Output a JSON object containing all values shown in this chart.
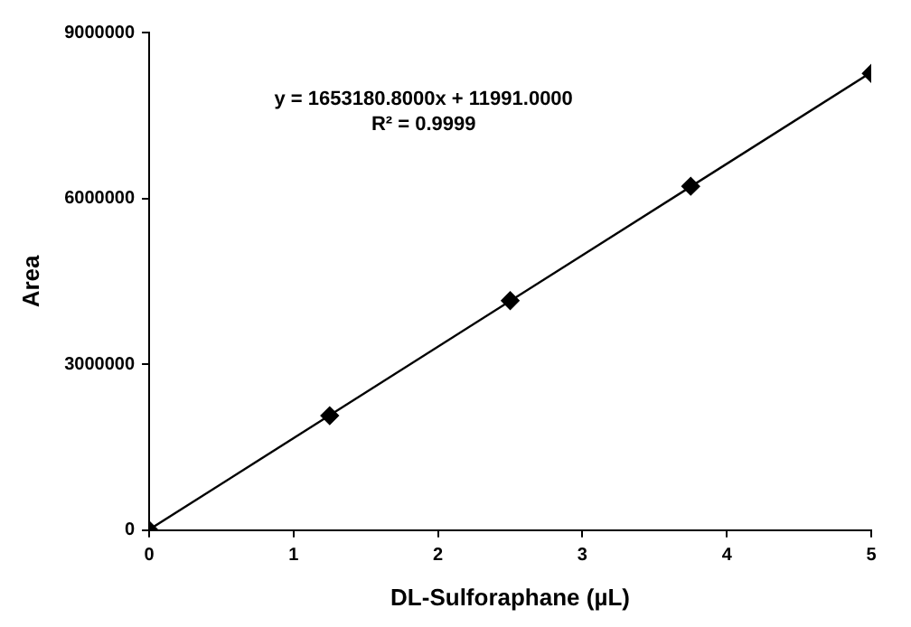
{
  "chart_data": {
    "type": "scatter",
    "xlabel": "DL-Sulforaphane (µL)",
    "ylabel": "Area",
    "xlim": [
      0,
      5
    ],
    "xticks": [
      0,
      1,
      2,
      3,
      4,
      5
    ],
    "ylim": [
      0,
      9000000
    ],
    "yticks": [
      0,
      3000000,
      6000000,
      9000000
    ],
    "grid": false,
    "legend": false,
    "marker": "diamond",
    "series": [
      {
        "color": "#000000",
        "x": [
          0,
          1.25,
          2.5,
          3.75,
          5
        ],
        "values": [
          0,
          2070000,
          4150000,
          6220000,
          8260000
        ]
      },
      {
        "type": "line",
        "color": "#000000",
        "marker": "none",
        "line_style": "solid",
        "x": [
          0,
          5
        ],
        "values": [
          10000,
          8280000
        ]
      }
    ],
    "annotations": [
      "y = 1653180.8000x + 11991.0000",
      "R² = 0.9999"
    ]
  }
}
